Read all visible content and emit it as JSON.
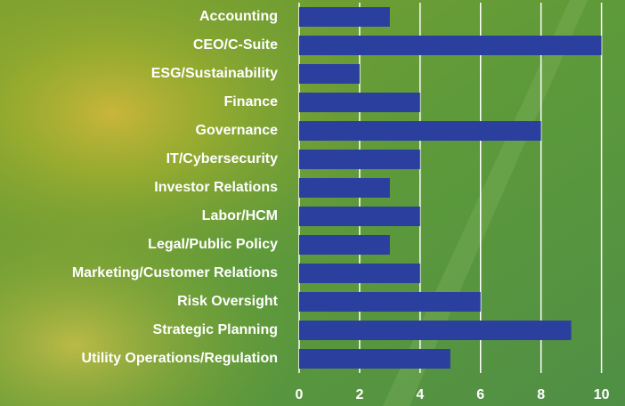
{
  "chart_data": {
    "type": "bar",
    "orientation": "horizontal",
    "categories": [
      "Accounting",
      "CEO/C-Suite",
      "ESG/Sustainability",
      "Finance",
      "Governance",
      "IT/Cybersecurity",
      "Investor Relations",
      "Labor/HCM",
      "Legal/Public Policy",
      "Marketing/Customer Relations",
      "Risk Oversight",
      "Strategic Planning",
      "Utility Operations/Regulation"
    ],
    "values": [
      3,
      10,
      2,
      4,
      8,
      4,
      3,
      4,
      3,
      4,
      6,
      9,
      5
    ],
    "color": "#2b3f9e",
    "xlim": [
      0,
      10.1
    ],
    "xticks": [
      0,
      2,
      4,
      6,
      8,
      10
    ],
    "grid": true
  }
}
